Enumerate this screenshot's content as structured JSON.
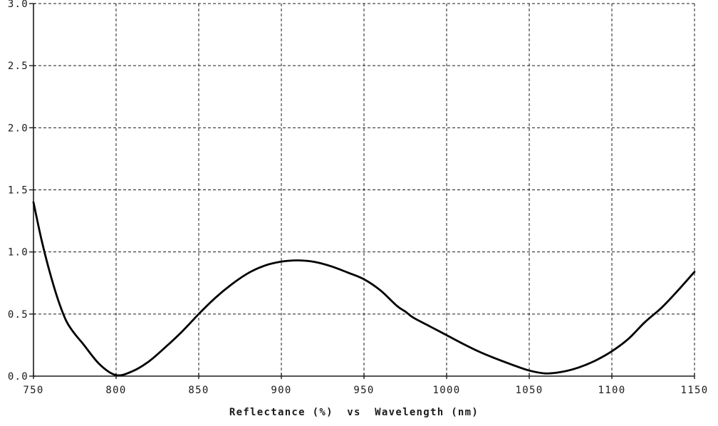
{
  "chart_data": {
    "type": "line",
    "title": "Reflectance (%)  vs  Wavelength (nm)",
    "xlabel": "Wavelength (nm)",
    "ylabel": "Reflectance (%)",
    "xlim": [
      750,
      1150
    ],
    "ylim": [
      0.0,
      3.0
    ],
    "x_ticks": [
      "750",
      "800",
      "850",
      "900",
      "950",
      "1000",
      "1050",
      "1100",
      "1150"
    ],
    "y_ticks": [
      "0.0",
      "0.5",
      "1.0",
      "1.5",
      "2.0",
      "2.5",
      "3.0"
    ],
    "grid": "dashed",
    "legend": "none",
    "line_color": "#000000",
    "grid_color": "#1b1b1b",
    "axis_color": "#1b1b1b",
    "text_color": "#1a1a1a",
    "background": "#ffffff",
    "series": [
      {
        "name": "Reflectance",
        "x": [
          750,
          755,
          760,
          765,
          770,
          775,
          780,
          790,
          800,
          810,
          820,
          830,
          840,
          850,
          860,
          870,
          880,
          890,
          900,
          910,
          920,
          930,
          940,
          950,
          960,
          970,
          975,
          980,
          990,
          1000,
          1010,
          1020,
          1030,
          1040,
          1050,
          1060,
          1070,
          1080,
          1090,
          1100,
          1110,
          1120,
          1130,
          1140,
          1150
        ],
        "y": [
          1.4,
          1.09,
          0.83,
          0.61,
          0.44,
          0.34,
          0.26,
          0.095,
          0.008,
          0.04,
          0.12,
          0.235,
          0.36,
          0.5,
          0.63,
          0.74,
          0.83,
          0.89,
          0.922,
          0.932,
          0.92,
          0.885,
          0.835,
          0.78,
          0.69,
          0.565,
          0.52,
          0.47,
          0.4,
          0.33,
          0.26,
          0.195,
          0.14,
          0.09,
          0.045,
          0.022,
          0.035,
          0.07,
          0.125,
          0.2,
          0.3,
          0.435,
          0.55,
          0.69,
          0.84
        ]
      }
    ]
  }
}
